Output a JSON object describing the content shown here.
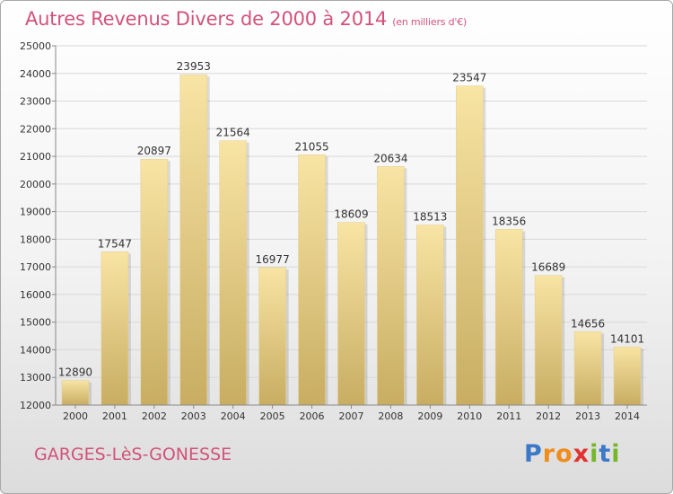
{
  "header": {
    "title": "Autres Revenus Divers de 2000 à 2014",
    "unit": "(en milliers d'€)"
  },
  "footer": {
    "city": "GARGES-LèS-GONESSE"
  },
  "logo": {
    "letters": [
      "P",
      "r",
      "o",
      "x",
      "i",
      "t",
      "i"
    ],
    "colors": [
      "#3b78c7",
      "#f08c1c",
      "#f08c1c",
      "#e2322f",
      "#76b72a",
      "#3b78c7",
      "#76b72a"
    ]
  },
  "colors": {
    "title": "#d2527a",
    "bar_top": "#f8e4a4",
    "bar_bottom": "#c8ad62",
    "grid": "#d8d8d8",
    "axis": "#888888"
  },
  "chart_data": {
    "type": "bar",
    "categories": [
      "2000",
      "2001",
      "2002",
      "2003",
      "2004",
      "2005",
      "2006",
      "2007",
      "2008",
      "2009",
      "2010",
      "2011",
      "2012",
      "2013",
      "2014"
    ],
    "values": [
      12890,
      17547,
      20897,
      23953,
      21564,
      16977,
      21055,
      18609,
      20634,
      18513,
      23547,
      18356,
      16689,
      14656,
      14101
    ],
    "ylim": [
      12000,
      25000
    ],
    "yticks": [
      12000,
      13000,
      14000,
      15000,
      16000,
      17000,
      18000,
      19000,
      20000,
      21000,
      22000,
      23000,
      24000,
      25000
    ],
    "grid": true,
    "data_labels": true
  }
}
